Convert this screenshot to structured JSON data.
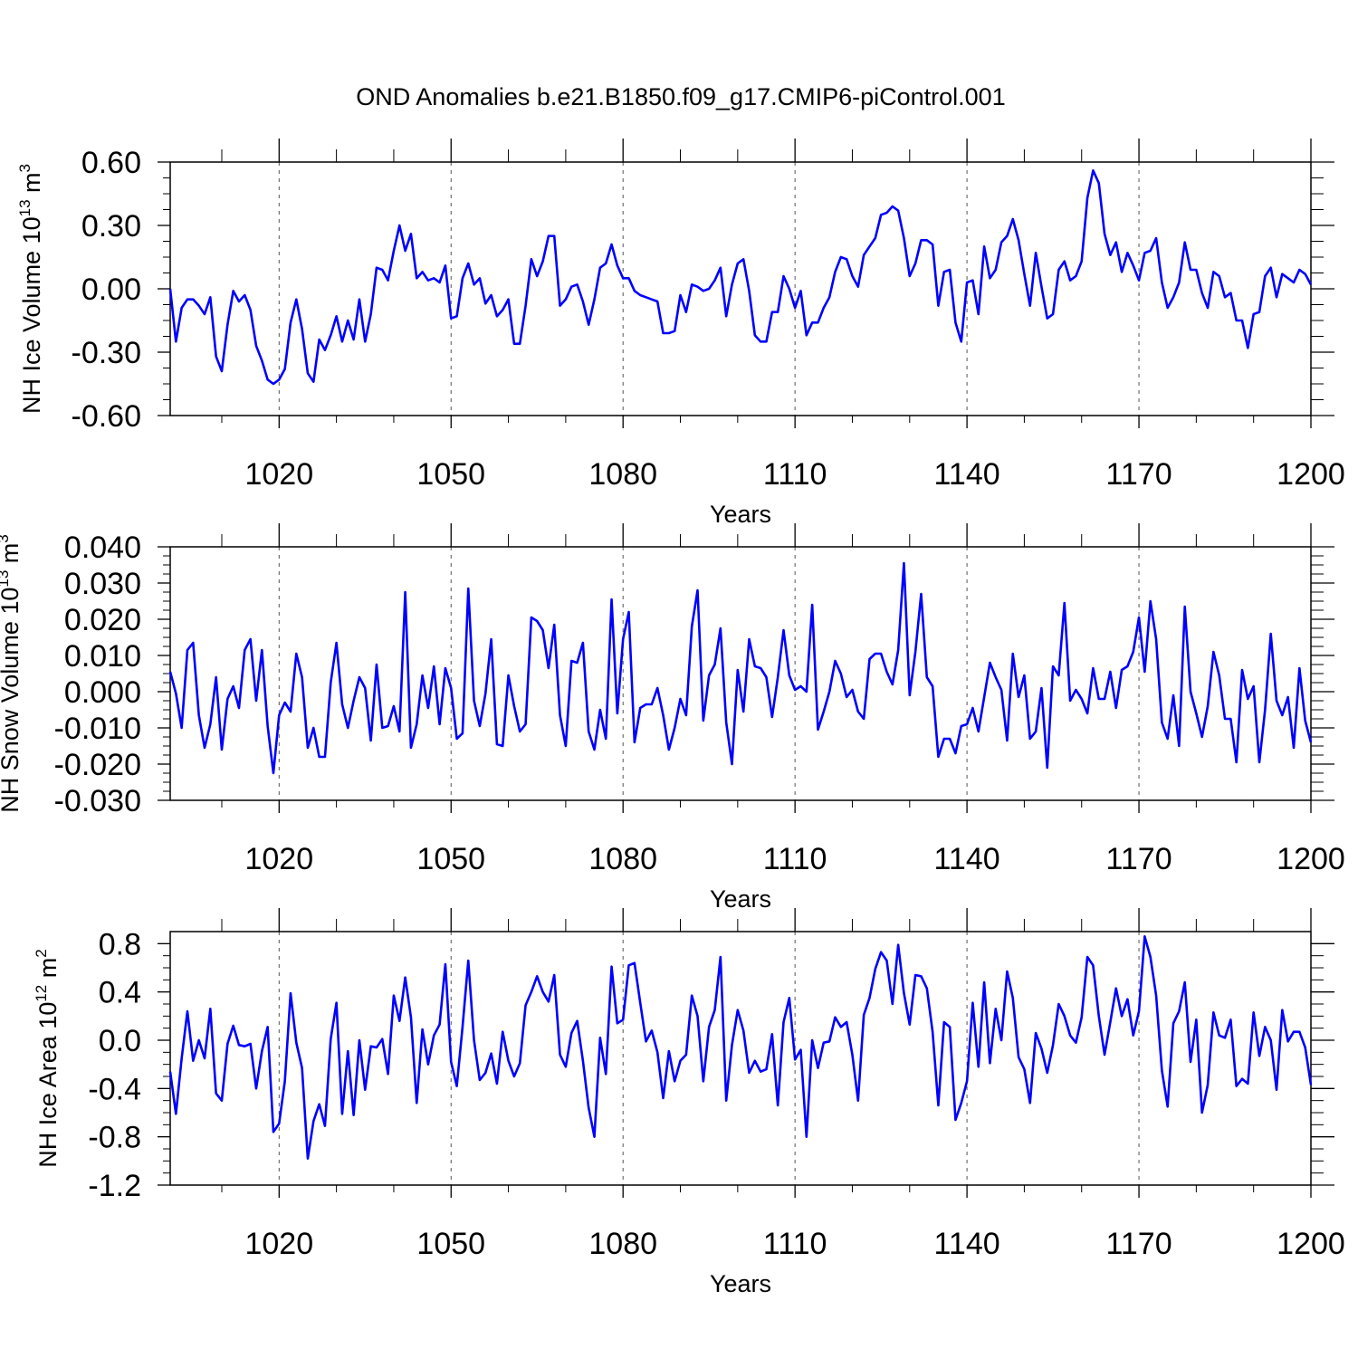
{
  "chart_data": [
    {
      "type": "line",
      "title": "OND Anomalies b.e21.B1850.f09_g17.CMIP6-piControl.001",
      "ylabel": {
        "main": "NH Ice Volume 10",
        "exponent": "13",
        "unit": " m",
        "unit_exponent": "3"
      },
      "xlabel": "Years",
      "xlim": [
        1001,
        1200
      ],
      "ylim": [
        -0.6,
        0.6
      ],
      "yticks": [
        -0.6,
        -0.3,
        0.0,
        0.3,
        0.6
      ],
      "ytick_labels": [
        "-0.60",
        "-0.30",
        "0.00",
        "0.30",
        "0.60"
      ],
      "xticks": [
        1020,
        1050,
        1080,
        1110,
        1140,
        1170,
        1200
      ],
      "xtick_labels": [
        "1020",
        "1050",
        "1080",
        "1110",
        "1140",
        "1170",
        "1200"
      ],
      "dashed_vlines": [
        1020,
        1050,
        1080,
        1110,
        1140,
        1170
      ],
      "series": [
        {
          "name": "NH Ice Volume",
          "color": "#0000ff",
          "x_start": 1001,
          "values": [
            0.0,
            -0.25,
            -0.09,
            -0.05,
            -0.05,
            -0.08,
            -0.12,
            -0.04,
            -0.32,
            -0.39,
            -0.17,
            -0.01,
            -0.06,
            -0.03,
            -0.1,
            -0.27,
            -0.34,
            -0.43,
            -0.45,
            -0.43,
            -0.38,
            -0.16,
            -0.05,
            -0.19,
            -0.4,
            -0.44,
            -0.24,
            -0.29,
            -0.22,
            -0.13,
            -0.25,
            -0.15,
            -0.24,
            -0.05,
            -0.25,
            -0.12,
            0.1,
            0.09,
            0.04,
            0.18,
            0.3,
            0.18,
            0.26,
            0.05,
            0.08,
            0.04,
            0.05,
            0.03,
            0.11,
            -0.14,
            -0.13,
            0.05,
            0.12,
            0.02,
            0.05,
            -0.07,
            -0.03,
            -0.13,
            -0.1,
            -0.05,
            -0.26,
            -0.26,
            -0.08,
            0.14,
            0.06,
            0.13,
            0.25,
            0.25,
            -0.08,
            -0.05,
            0.01,
            0.02,
            -0.06,
            -0.17,
            -0.05,
            0.1,
            0.12,
            0.21,
            0.11,
            0.05,
            0.05,
            -0.01,
            -0.03,
            -0.04,
            -0.05,
            -0.06,
            -0.21,
            -0.21,
            -0.2,
            -0.03,
            -0.11,
            0.02,
            0.01,
            -0.01,
            0.0,
            0.04,
            0.1,
            -0.13,
            0.02,
            0.12,
            0.14,
            -0.01,
            -0.22,
            -0.25,
            -0.25,
            -0.11,
            -0.11,
            0.06,
            0.0,
            -0.09,
            -0.01,
            -0.22,
            -0.16,
            -0.16,
            -0.09,
            -0.04,
            0.08,
            0.15,
            0.14,
            0.06,
            0.01,
            0.16,
            0.2,
            0.24,
            0.35,
            0.36,
            0.39,
            0.37,
            0.24,
            0.06,
            0.12,
            0.23,
            0.23,
            0.21,
            -0.08,
            0.08,
            0.09,
            -0.16,
            -0.25,
            0.03,
            0.04,
            -0.12,
            0.2,
            0.05,
            0.09,
            0.22,
            0.25,
            0.33,
            0.23,
            0.07,
            -0.08,
            0.17,
            0.01,
            -0.14,
            -0.12,
            0.09,
            0.13,
            0.04,
            0.06,
            0.13,
            0.43,
            0.56,
            0.5,
            0.26,
            0.16,
            0.22,
            0.08,
            0.17,
            0.11,
            0.04,
            0.17,
            0.18,
            0.24,
            0.03,
            -0.09,
            -0.04,
            0.03,
            0.22,
            0.09,
            0.09,
            -0.02,
            -0.09,
            0.08,
            0.06,
            -0.04,
            -0.02,
            -0.15,
            -0.15,
            -0.28,
            -0.12,
            -0.11,
            0.06,
            0.1,
            -0.04,
            0.07,
            0.05,
            0.03,
            0.09,
            0.07,
            0.02
          ]
        }
      ]
    },
    {
      "type": "line",
      "ylabel": {
        "main": "NH Snow Volume 10",
        "exponent": "13",
        "unit": " m",
        "unit_exponent": "3"
      },
      "xlabel": "Years",
      "xlim": [
        1001,
        1200
      ],
      "ylim": [
        -0.03,
        0.04
      ],
      "yticks": [
        -0.03,
        -0.02,
        -0.01,
        0.0,
        0.01,
        0.02,
        0.03,
        0.04
      ],
      "ytick_labels": [
        "-0.030",
        "-0.020",
        "-0.010",
        "0.000",
        "0.010",
        "0.020",
        "0.030",
        "0.040"
      ],
      "xticks": [
        1020,
        1050,
        1080,
        1110,
        1140,
        1170,
        1200
      ],
      "xtick_labels": [
        "1020",
        "1050",
        "1080",
        "1110",
        "1140",
        "1170",
        "1200"
      ],
      "dashed_vlines": [
        1020,
        1050,
        1080,
        1110,
        1140,
        1170
      ],
      "series": [
        {
          "name": "NH Snow Volume",
          "color": "#0000ff",
          "x_start": 1001,
          "values": [
            0.0055,
            -0.0005,
            -0.01,
            0.0115,
            0.0135,
            -0.0065,
            -0.0155,
            -0.009,
            0.004,
            -0.016,
            -0.002,
            0.0015,
            -0.0045,
            0.0115,
            0.0145,
            -0.0025,
            0.0115,
            -0.0095,
            -0.0225,
            -0.0065,
            -0.003,
            -0.0055,
            0.0105,
            0.004,
            -0.0155,
            -0.01,
            -0.018,
            -0.018,
            0.0025,
            0.0135,
            -0.0035,
            -0.01,
            -0.0025,
            0.004,
            0.001,
            -0.0135,
            0.0075,
            -0.01,
            -0.0095,
            -0.004,
            -0.011,
            0.0275,
            -0.0155,
            -0.009,
            0.0045,
            -0.0045,
            0.007,
            -0.009,
            0.0065,
            0.001,
            -0.013,
            -0.0115,
            0.0285,
            -0.0025,
            -0.0095,
            -0.0005,
            0.0145,
            -0.0145,
            -0.015,
            0.0045,
            -0.004,
            -0.011,
            -0.009,
            0.0205,
            0.0195,
            0.017,
            0.0065,
            0.0185,
            -0.0065,
            -0.015,
            0.0085,
            0.008,
            0.0135,
            -0.011,
            -0.016,
            -0.005,
            -0.013,
            0.0255,
            -0.006,
            0.0145,
            0.022,
            -0.014,
            -0.0045,
            -0.0035,
            -0.0035,
            0.001,
            -0.0065,
            -0.016,
            -0.01,
            -0.002,
            -0.0065,
            0.018,
            0.028,
            -0.008,
            0.0045,
            0.0075,
            0.0175,
            -0.0085,
            -0.02,
            0.006,
            -0.0055,
            0.0145,
            0.007,
            0.0065,
            0.004,
            -0.007,
            0.004,
            0.017,
            0.0045,
            0.0005,
            0.0015,
            0.0,
            0.024,
            -0.0105,
            -0.0055,
            0.0,
            0.0085,
            0.005,
            -0.0015,
            0.0005,
            -0.0055,
            -0.0075,
            0.009,
            0.0105,
            0.0105,
            0.0055,
            0.002,
            0.0115,
            0.0355,
            -0.001,
            0.011,
            0.027,
            0.004,
            0.0015,
            -0.018,
            -0.013,
            -0.013,
            -0.017,
            -0.0095,
            -0.009,
            -0.0045,
            -0.011,
            -0.0015,
            0.008,
            0.004,
            0.0005,
            -0.0135,
            0.0105,
            -0.0015,
            0.0045,
            -0.013,
            -0.011,
            0.001,
            -0.021,
            0.007,
            0.0045,
            0.0245,
            -0.0025,
            0.0005,
            -0.002,
            -0.006,
            0.0065,
            -0.002,
            -0.002,
            0.0055,
            -0.0045,
            0.006,
            0.007,
            0.011,
            0.0205,
            0.0055,
            0.025,
            0.0145,
            -0.0085,
            -0.013,
            -0.001,
            -0.015,
            0.0235,
            0.0,
            -0.006,
            -0.0125,
            -0.004,
            0.011,
            0.0045,
            -0.0075,
            -0.0075,
            -0.0195,
            0.006,
            -0.002,
            0.0015,
            -0.0195,
            -0.005,
            0.016,
            -0.0025,
            -0.0065,
            -0.0015,
            -0.0155,
            0.0065,
            -0.008,
            -0.014
          ]
        }
      ]
    },
    {
      "type": "line",
      "ylabel": {
        "main": "NH Ice Area 10",
        "exponent": "12",
        "unit": " m",
        "unit_exponent": "2"
      },
      "xlabel": "Years",
      "xlim": [
        1001,
        1200
      ],
      "ylim": [
        -1.2,
        0.9
      ],
      "yticks": [
        -1.2,
        -0.8,
        -0.4,
        0.0,
        0.4,
        0.8
      ],
      "ytick_labels": [
        "-1.2",
        "-0.8",
        "-0.4",
        "0.0",
        "0.4",
        "0.8"
      ],
      "xticks": [
        1020,
        1050,
        1080,
        1110,
        1140,
        1170,
        1200
      ],
      "xtick_labels": [
        "1020",
        "1050",
        "1080",
        "1110",
        "1140",
        "1170",
        "1200"
      ],
      "dashed_vlines": [
        1020,
        1050,
        1080,
        1110,
        1140,
        1170
      ],
      "series": [
        {
          "name": "NH Ice Area",
          "color": "#0000ff",
          "x_start": 1001,
          "values": [
            -0.26,
            -0.61,
            -0.15,
            0.24,
            -0.17,
            0.0,
            -0.15,
            0.26,
            -0.44,
            -0.5,
            -0.03,
            0.12,
            -0.04,
            -0.05,
            -0.03,
            -0.4,
            -0.09,
            0.11,
            -0.76,
            -0.69,
            -0.34,
            0.39,
            -0.02,
            -0.23,
            -0.98,
            -0.67,
            -0.53,
            -0.71,
            0.01,
            0.31,
            -0.61,
            -0.09,
            -0.62,
            0.0,
            -0.41,
            -0.05,
            -0.06,
            0.01,
            -0.28,
            0.37,
            0.16,
            0.52,
            0.19,
            -0.52,
            0.09,
            -0.2,
            0.04,
            0.13,
            0.63,
            -0.18,
            -0.38,
            0.11,
            0.66,
            0.0,
            -0.33,
            -0.27,
            -0.11,
            -0.36,
            0.07,
            -0.17,
            -0.3,
            -0.19,
            0.29,
            0.4,
            0.53,
            0.4,
            0.32,
            0.54,
            -0.12,
            -0.22,
            0.06,
            0.16,
            -0.17,
            -0.56,
            -0.8,
            0.02,
            -0.28,
            0.61,
            0.14,
            0.17,
            0.62,
            0.64,
            0.31,
            -0.01,
            0.08,
            -0.1,
            -0.48,
            -0.09,
            -0.34,
            -0.17,
            -0.12,
            0.37,
            0.2,
            -0.34,
            0.11,
            0.25,
            0.69,
            -0.5,
            -0.04,
            0.25,
            0.08,
            -0.27,
            -0.17,
            -0.26,
            -0.24,
            0.05,
            -0.54,
            0.15,
            0.35,
            -0.16,
            -0.08,
            -0.8,
            0.0,
            -0.23,
            -0.02,
            -0.01,
            0.19,
            0.11,
            0.15,
            -0.12,
            -0.5,
            0.21,
            0.35,
            0.59,
            0.73,
            0.66,
            0.3,
            0.79,
            0.39,
            0.13,
            0.54,
            0.53,
            0.43,
            0.07,
            -0.54,
            0.15,
            0.11,
            -0.66,
            -0.52,
            -0.34,
            0.31,
            -0.22,
            0.48,
            -0.19,
            0.26,
            0.0,
            0.57,
            0.35,
            -0.14,
            -0.24,
            -0.52,
            0.06,
            -0.07,
            -0.27,
            -0.04,
            0.3,
            0.2,
            0.04,
            -0.02,
            0.19,
            0.69,
            0.62,
            0.2,
            -0.12,
            0.15,
            0.43,
            0.2,
            0.34,
            0.04,
            0.24,
            0.86,
            0.69,
            0.37,
            -0.25,
            -0.55,
            0.14,
            0.24,
            0.48,
            -0.18,
            0.17,
            -0.6,
            -0.37,
            0.23,
            0.04,
            0.02,
            0.17,
            -0.38,
            -0.32,
            -0.36,
            0.23,
            -0.13,
            0.11,
            0.0,
            -0.41,
            0.25,
            -0.01,
            0.07,
            0.07,
            -0.06,
            -0.37
          ]
        }
      ]
    }
  ]
}
